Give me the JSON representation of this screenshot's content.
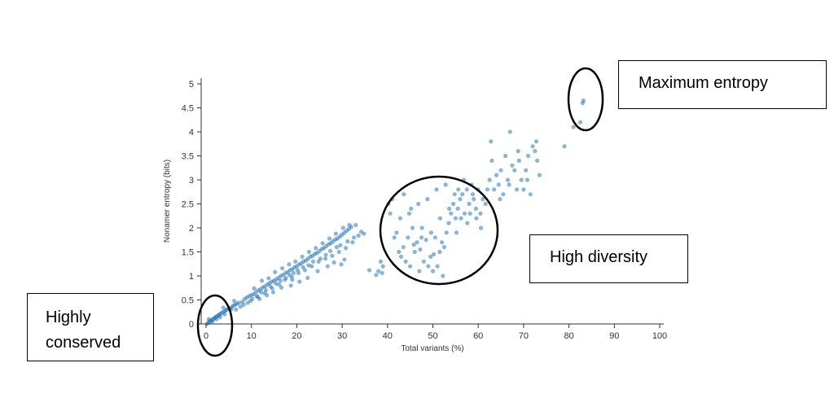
{
  "chart_data": {
    "type": "scatter",
    "title": "",
    "xlabel": "Total variants (%)",
    "ylabel": "Nonamer entropy (bits)",
    "xlim": [
      0,
      100
    ],
    "ylim": [
      0,
      5
    ],
    "x_ticks": [
      "0",
      "10",
      "20",
      "30",
      "40",
      "50",
      "60",
      "70",
      "80",
      "90",
      "100"
    ],
    "y_ticks": [
      "0",
      "0.5",
      "1",
      "1.5",
      "2",
      "2.5",
      "3",
      "3.5",
      "4",
      "4.5",
      "5"
    ],
    "grid": false,
    "point_color": "#2a78b6",
    "series": [
      {
        "name": "Nonamer positions",
        "points": [
          [
            0.2,
            0.0
          ],
          [
            0.5,
            0.03
          ],
          [
            0.8,
            0.05
          ],
          [
            1.0,
            0.07
          ],
          [
            1.2,
            0.08
          ],
          [
            1.5,
            0.1
          ],
          [
            1.8,
            0.12
          ],
          [
            2.0,
            0.13
          ],
          [
            2.2,
            0.15
          ],
          [
            2.5,
            0.17
          ],
          [
            2.8,
            0.18
          ],
          [
            3.0,
            0.2
          ],
          [
            3.3,
            0.22
          ],
          [
            3.6,
            0.24
          ],
          [
            4.0,
            0.26
          ],
          [
            4.3,
            0.28
          ],
          [
            4.6,
            0.3
          ],
          [
            5.0,
            0.32
          ],
          [
            5.3,
            0.33
          ],
          [
            5.7,
            0.35
          ],
          [
            6.0,
            0.38
          ],
          [
            6.4,
            0.4
          ],
          [
            6.8,
            0.42
          ],
          [
            7.2,
            0.44
          ],
          [
            1.4,
            0.05
          ],
          [
            2.3,
            0.1
          ],
          [
            3.1,
            0.14
          ],
          [
            4.1,
            0.2
          ],
          [
            0.6,
            0.1
          ],
          [
            3.8,
            0.34
          ],
          [
            5.5,
            0.3
          ],
          [
            6.2,
            0.48
          ],
          [
            8.0,
            0.46
          ],
          [
            8.5,
            0.52
          ],
          [
            9.0,
            0.55
          ],
          [
            9.5,
            0.58
          ],
          [
            10.0,
            0.6
          ],
          [
            10.5,
            0.62
          ],
          [
            11.0,
            0.66
          ],
          [
            11.5,
            0.7
          ],
          [
            12.0,
            0.72
          ],
          [
            12.5,
            0.76
          ],
          [
            13.0,
            0.78
          ],
          [
            13.5,
            0.82
          ],
          [
            14.0,
            0.85
          ],
          [
            14.5,
            0.88
          ],
          [
            15.0,
            0.9
          ],
          [
            15.5,
            0.93
          ],
          [
            16.0,
            0.96
          ],
          [
            16.5,
            1.0
          ],
          [
            17.0,
            1.02
          ],
          [
            17.5,
            1.06
          ],
          [
            18.0,
            1.08
          ],
          [
            18.5,
            1.12
          ],
          [
            19.0,
            1.14
          ],
          [
            19.5,
            1.18
          ],
          [
            20.0,
            1.2
          ],
          [
            20.5,
            1.24
          ],
          [
            21.0,
            1.26
          ],
          [
            21.5,
            1.3
          ],
          [
            22.0,
            1.32
          ],
          [
            22.5,
            1.36
          ],
          [
            23.0,
            1.4
          ],
          [
            23.5,
            1.42
          ],
          [
            24.0,
            1.46
          ],
          [
            24.5,
            1.48
          ],
          [
            25.0,
            1.52
          ],
          [
            25.5,
            1.56
          ],
          [
            26.0,
            1.58
          ],
          [
            26.5,
            1.62
          ],
          [
            27.0,
            1.66
          ],
          [
            27.5,
            1.68
          ],
          [
            28.0,
            1.72
          ],
          [
            28.5,
            1.76
          ],
          [
            29.0,
            1.78
          ],
          [
            29.5,
            1.82
          ],
          [
            30.0,
            1.86
          ],
          [
            30.5,
            1.9
          ],
          [
            31.0,
            1.94
          ],
          [
            31.5,
            1.98
          ],
          [
            32.0,
            2.02
          ],
          [
            9.8,
            0.48
          ],
          [
            10.6,
            0.74
          ],
          [
            11.4,
            0.56
          ],
          [
            12.3,
            0.9
          ],
          [
            12.9,
            0.64
          ],
          [
            13.8,
            0.95
          ],
          [
            14.6,
            0.74
          ],
          [
            15.2,
            1.08
          ],
          [
            16.1,
            0.82
          ],
          [
            16.8,
            1.16
          ],
          [
            17.4,
            0.92
          ],
          [
            18.3,
            1.24
          ],
          [
            18.9,
            0.98
          ],
          [
            19.7,
            1.3
          ],
          [
            20.4,
            1.06
          ],
          [
            21.2,
            1.4
          ],
          [
            21.8,
            1.12
          ],
          [
            22.7,
            1.5
          ],
          [
            23.3,
            1.2
          ],
          [
            24.2,
            1.58
          ],
          [
            24.8,
            1.3
          ],
          [
            25.7,
            1.68
          ],
          [
            26.3,
            1.36
          ],
          [
            27.2,
            1.78
          ],
          [
            27.8,
            1.42
          ],
          [
            28.6,
            1.88
          ],
          [
            29.3,
            1.5
          ],
          [
            30.2,
            2.0
          ],
          [
            30.8,
            1.58
          ],
          [
            31.6,
            2.06
          ],
          [
            32.3,
            1.7
          ],
          [
            33.0,
            2.06
          ],
          [
            33.6,
            1.84
          ],
          [
            34.2,
            1.92
          ],
          [
            34.8,
            1.88
          ],
          [
            26.8,
            1.2
          ],
          [
            28.2,
            1.28
          ],
          [
            29.8,
            1.24
          ],
          [
            30.5,
            1.34
          ],
          [
            24.6,
            1.1
          ],
          [
            22.4,
            0.96
          ],
          [
            20.6,
            0.88
          ],
          [
            18.7,
            0.8
          ],
          [
            36.0,
            1.12
          ],
          [
            38.0,
            1.1
          ],
          [
            38.5,
            1.3
          ],
          [
            39.0,
            1.2
          ],
          [
            37.5,
            1.02
          ],
          [
            38.8,
            1.06
          ],
          [
            6.6,
            0.3
          ],
          [
            7.6,
            0.36
          ],
          [
            8.3,
            0.4
          ],
          [
            9.2,
            0.44
          ],
          [
            10.2,
            0.52
          ],
          [
            11.2,
            0.58
          ],
          [
            12.1,
            0.66
          ],
          [
            13.2,
            0.7
          ],
          [
            14.2,
            0.78
          ],
          [
            15.4,
            0.84
          ],
          [
            16.4,
            0.9
          ],
          [
            17.6,
            0.96
          ],
          [
            18.4,
            1.02
          ],
          [
            19.3,
            1.06
          ],
          [
            20.2,
            1.12
          ],
          [
            21.4,
            1.18
          ],
          [
            22.6,
            1.22
          ],
          [
            23.6,
            1.3
          ],
          [
            25.2,
            1.36
          ],
          [
            26.4,
            1.44
          ],
          [
            27.4,
            1.52
          ],
          [
            28.8,
            1.6
          ],
          [
            29.6,
            1.64
          ],
          [
            31.2,
            1.72
          ],
          [
            32.6,
            1.8
          ],
          [
            14.8,
            0.66
          ],
          [
            13.4,
            0.6
          ],
          [
            11.8,
            0.52
          ],
          [
            16.6,
            0.76
          ],
          [
            19.0,
            0.92
          ],
          [
            41.5,
            1.8
          ],
          [
            42.0,
            1.9
          ],
          [
            42.5,
            1.5
          ],
          [
            43.0,
            1.4
          ],
          [
            43.5,
            1.6
          ],
          [
            44.0,
            1.3
          ],
          [
            44.5,
            1.8
          ],
          [
            45.0,
            1.2
          ],
          [
            45.5,
            2.0
          ],
          [
            46.0,
            1.5
          ],
          [
            46.5,
            1.7
          ],
          [
            47.0,
            1.1
          ],
          [
            47.5,
            1.8
          ],
          [
            48.0,
            1.3
          ],
          [
            48.5,
            1.75
          ],
          [
            49.0,
            1.2
          ],
          [
            49.5,
            1.4
          ],
          [
            50.0,
            1.1
          ],
          [
            50.5,
            1.8
          ],
          [
            51.0,
            1.2
          ],
          [
            51.5,
            1.5
          ],
          [
            52.0,
            1.7
          ],
          [
            52.5,
            1.6
          ],
          [
            53.0,
            1.9
          ],
          [
            53.5,
            2.1
          ],
          [
            54.0,
            2.3
          ],
          [
            54.5,
            2.5
          ],
          [
            55.0,
            2.2
          ],
          [
            55.5,
            2.4
          ],
          [
            56.0,
            2.6
          ],
          [
            56.5,
            2.7
          ],
          [
            57.0,
            2.3
          ],
          [
            57.5,
            2.8
          ],
          [
            58.0,
            2.5
          ],
          [
            58.5,
            2.9
          ],
          [
            59.0,
            2.6
          ],
          [
            59.5,
            2.4
          ],
          [
            60.0,
            2.8
          ],
          [
            60.5,
            2.3
          ],
          [
            61.0,
            2.6
          ],
          [
            41.0,
            2.6
          ],
          [
            42.8,
            2.2
          ],
          [
            44.8,
            2.3
          ],
          [
            46.8,
            2.5
          ],
          [
            48.8,
            2.6
          ],
          [
            50.8,
            2.8
          ],
          [
            52.8,
            2.9
          ],
          [
            54.8,
            2.7
          ],
          [
            56.8,
            3.0
          ],
          [
            58.8,
            2.7
          ],
          [
            43.6,
            2.7
          ],
          [
            45.2,
            2.4
          ],
          [
            47.6,
            2.0
          ],
          [
            49.6,
            1.9
          ],
          [
            51.6,
            2.2
          ],
          [
            53.6,
            2.4
          ],
          [
            55.6,
            2.8
          ],
          [
            57.6,
            2.1
          ],
          [
            59.6,
            2.2
          ],
          [
            61.6,
            2.5
          ],
          [
            40.2,
            2.5
          ],
          [
            40.6,
            2.3
          ],
          [
            45.8,
            1.65
          ],
          [
            47.2,
            1.55
          ],
          [
            50.2,
            1.45
          ],
          [
            52.2,
            1.0
          ],
          [
            55.2,
            1.9
          ],
          [
            56.2,
            2.2
          ],
          [
            58.2,
            2.3
          ],
          [
            60.6,
            2.0
          ],
          [
            62.0,
            2.8
          ],
          [
            62.5,
            3.0
          ],
          [
            63.0,
            3.4
          ],
          [
            63.5,
            2.8
          ],
          [
            64.0,
            3.1
          ],
          [
            64.5,
            2.9
          ],
          [
            65.0,
            3.2
          ],
          [
            65.5,
            2.7
          ],
          [
            66.0,
            3.5
          ],
          [
            66.5,
            3.0
          ],
          [
            67.0,
            4.0
          ],
          [
            67.5,
            3.3
          ],
          [
            68.0,
            3.2
          ],
          [
            68.5,
            2.8
          ],
          [
            69.0,
            3.4
          ],
          [
            69.5,
            3.0
          ],
          [
            70.0,
            2.8
          ],
          [
            70.5,
            3.2
          ],
          [
            71.0,
            3.5
          ],
          [
            71.5,
            2.7
          ],
          [
            72.0,
            3.7
          ],
          [
            72.5,
            3.6
          ],
          [
            73.0,
            3.4
          ],
          [
            73.5,
            3.1
          ],
          [
            62.8,
            3.8
          ],
          [
            64.8,
            2.6
          ],
          [
            66.8,
            2.9
          ],
          [
            68.8,
            3.6
          ],
          [
            70.8,
            3.0
          ],
          [
            72.8,
            3.8
          ],
          [
            79.0,
            3.7
          ],
          [
            81.0,
            4.1
          ],
          [
            82.5,
            4.2
          ],
          [
            83.0,
            4.6
          ],
          [
            83.2,
            4.65
          ]
        ]
      }
    ]
  },
  "annotations": {
    "max_entropy": "Maximum entropy",
    "high_diversity": "High diversity",
    "highly": "Highly",
    "conserved": "conserved"
  }
}
